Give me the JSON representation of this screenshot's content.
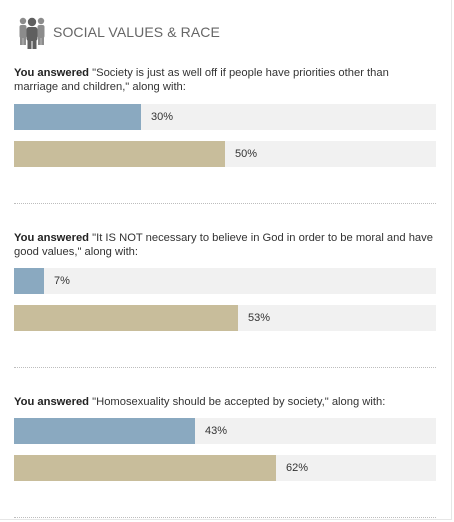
{
  "header": {
    "title": "SOCIAL VALUES & RACE",
    "icon": "people-group-icon"
  },
  "colors": {
    "series_a": "#8aa9c0",
    "series_b": "#c8bd9b",
    "track": "#f1f1f1",
    "icon": "#5f5f5f"
  },
  "sections": [
    {
      "lead": "You answered",
      "text": " \"Society is just as well off if people have priorities other than marriage and children,\" along with:",
      "bars": [
        {
          "value": 30,
          "label": "30%"
        },
        {
          "value": 50,
          "label": "50%"
        }
      ]
    },
    {
      "lead": "You answered",
      "text": " \"It IS NOT necessary to believe in God in order to be moral and have good values,\" along with:",
      "bars": [
        {
          "value": 7,
          "label": "7%"
        },
        {
          "value": 53,
          "label": "53%"
        }
      ]
    },
    {
      "lead": "You answered",
      "text": " \"Homosexuality should be accepted by society,\" along with:",
      "bars": [
        {
          "value": 43,
          "label": "43%"
        },
        {
          "value": 62,
          "label": "62%"
        }
      ]
    }
  ]
}
